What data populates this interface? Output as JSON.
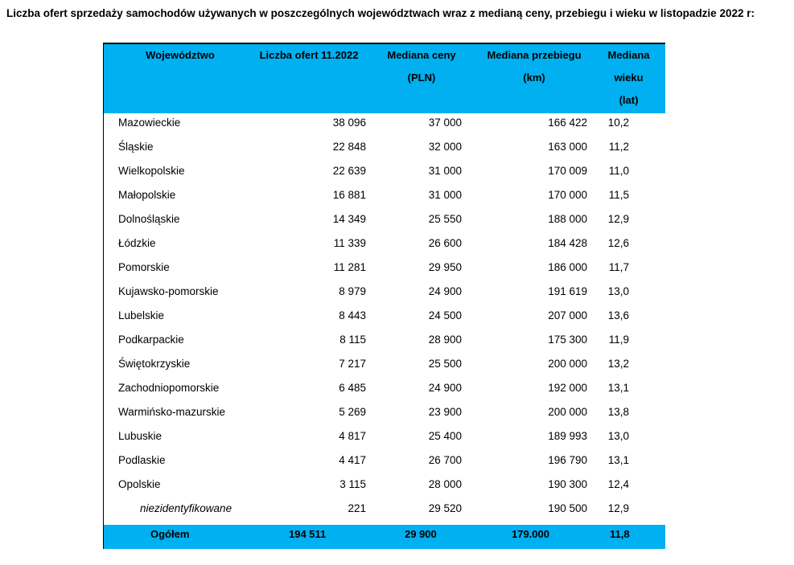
{
  "title": "Liczba ofert sprzedaży samochodów używanych w poszczególnych województwach wraz z medianą ceny, przebiegu i wieku w listopadzie 2022 r:",
  "headers": [
    "Województwo",
    "Liczba ofert 11.2022",
    "Mediana ceny",
    "(PLN)",
    "Mediana przebiegu",
    "(km)",
    "Mediana",
    "wieku",
    "(lat)"
  ],
  "header_color": "#00b0f0",
  "rows": [
    [
      "Mazowieckie",
      "38 096",
      "37 000",
      "166 422",
      "10,2"
    ],
    [
      "Śląskie",
      "22 848",
      "32 000",
      "163 000",
      "11,2"
    ],
    [
      "Wielkopolskie",
      "22 639",
      "31 000",
      "170 009",
      "11,0"
    ],
    [
      "Małopolskie",
      "16 881",
      "31 000",
      "170 000",
      "11,5"
    ],
    [
      "Dolnośląskie",
      "14 349",
      "25 550",
      "188 000",
      "12,9"
    ],
    [
      "Łódzkie",
      "11 339",
      "26 600",
      "184 428",
      "12,6"
    ],
    [
      "Pomorskie",
      "11 281",
      "29 950",
      "186 000",
      "11,7"
    ],
    [
      "Kujawsko-pomorskie",
      "8 979",
      "24 900",
      "191 619",
      "13,0"
    ],
    [
      "Lubelskie",
      "8 443",
      "24 500",
      "207 000",
      "13,6"
    ],
    [
      "Podkarpackie",
      "8 115",
      "28 900",
      "175 300",
      "11,9"
    ],
    [
      "Świętokrzyskie",
      "7 217",
      "25 500",
      "200 000",
      "13,2"
    ],
    [
      "Zachodniopomorskie",
      "6 485",
      "24 900",
      "192 000",
      "13,1"
    ],
    [
      "Warmińsko-mazurskie",
      "5 269",
      "23 900",
      "200 000",
      "13,8"
    ],
    [
      "Lubuskie",
      "4 817",
      "25 400",
      "189 993",
      "13,0"
    ],
    [
      "Podlaskie",
      "4 417",
      "26 700",
      "196 790",
      "13,1"
    ],
    [
      "Opolskie",
      "3 115",
      "28 000",
      "190 300",
      "12,4"
    ],
    [
      "niezidentyfikowane",
      "221",
      "29 520",
      "190 500",
      "12,9"
    ]
  ],
  "total": [
    "Ogółem",
    "194 511",
    "29 900",
    "179.000",
    "11,8"
  ]
}
